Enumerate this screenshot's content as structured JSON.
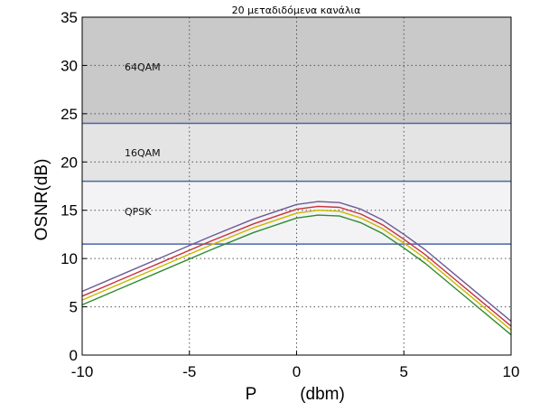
{
  "chart_data": {
    "type": "line",
    "title": "20 μεταδιδόμενα κανάλια",
    "xlabel_left": "P",
    "xlabel_right": "(dbm)",
    "ylabel": "OSNR(dB)",
    "xlim": [
      -10,
      10
    ],
    "ylim": [
      0,
      35
    ],
    "x_ticks": [
      "-10",
      "-5",
      "0",
      "5",
      "10"
    ],
    "y_ticks": [
      "0",
      "5",
      "10",
      "15",
      "20",
      "25",
      "30",
      "35"
    ],
    "grid": true,
    "bands": [
      {
        "label": "64QAM",
        "y_min": 24,
        "y_max": 35,
        "color": "#c9c9c9"
      },
      {
        "label": "16QAM",
        "y_min": 18,
        "y_max": 24,
        "color": "#e4e4e4"
      },
      {
        "label": "QPSK",
        "y_min": 11.5,
        "y_max": 18,
        "color": "#f3f3f5"
      }
    ],
    "threshold_color": "#4a66a8",
    "series": [
      {
        "color": "#6b5b95",
        "x": [
          -10,
          -8,
          -6,
          -4,
          -2,
          0,
          1,
          2,
          3,
          4,
          5,
          6,
          8,
          10
        ],
        "y": [
          6.6,
          8.5,
          10.4,
          12.3,
          14.1,
          15.6,
          15.9,
          15.8,
          15.1,
          14.0,
          12.5,
          10.9,
          7.2,
          3.5
        ]
      },
      {
        "color": "#c8323c",
        "x": [
          -10,
          -8,
          -6,
          -4,
          -2,
          0,
          1,
          2,
          3,
          4,
          5,
          6,
          8,
          10
        ],
        "y": [
          6.1,
          8.0,
          9.9,
          11.8,
          13.6,
          15.1,
          15.4,
          15.3,
          14.6,
          13.5,
          12.0,
          10.4,
          6.7,
          3.0
        ]
      },
      {
        "color": "#c9b800",
        "x": [
          -10,
          -8,
          -6,
          -4,
          -2,
          0,
          1,
          2,
          3,
          4,
          5,
          6,
          8,
          10
        ],
        "y": [
          5.7,
          7.6,
          9.5,
          11.4,
          13.2,
          14.7,
          15.0,
          14.9,
          14.2,
          13.1,
          11.6,
          10.0,
          6.3,
          2.6
        ]
      },
      {
        "color": "#2e8b2e",
        "x": [
          -10,
          -8,
          -6,
          -4,
          -2,
          0,
          1,
          2,
          3,
          4,
          5,
          6,
          8,
          10
        ],
        "y": [
          5.2,
          7.1,
          9.0,
          10.9,
          12.7,
          14.2,
          14.5,
          14.4,
          13.7,
          12.6,
          11.1,
          9.5,
          5.8,
          2.1
        ]
      }
    ]
  }
}
